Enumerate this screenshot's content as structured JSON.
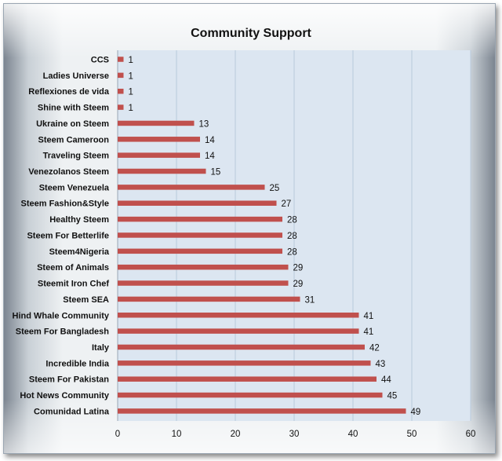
{
  "chart_data": {
    "type": "bar",
    "orientation": "horizontal",
    "title": "Community Support",
    "categories": [
      "CCS",
      "Ladies Universe",
      "Reflexiones de vida",
      "Shine with Steem",
      "Ukraine on Steem",
      "Steem Cameroon",
      "Traveling Steem",
      "Venezolanos Steem",
      "Steem Venezuela",
      "Steem Fashion&Style",
      "Healthy Steem",
      "Steem For Betterlife",
      "Steem4Nigeria",
      "Steem of Animals",
      "Steemit Iron Chef",
      "Steem SEA",
      "Hind Whale Community",
      "Steem For Bangladesh",
      "Italy",
      "Incredible India",
      "Steem For Pakistan",
      "Hot News Community",
      "Comunidad Latina"
    ],
    "values": [
      1,
      1,
      1,
      1,
      13,
      14,
      14,
      15,
      25,
      27,
      28,
      28,
      28,
      29,
      29,
      31,
      41,
      41,
      42,
      43,
      44,
      45,
      49
    ],
    "xlim": [
      0,
      60
    ],
    "xticks": [
      0,
      10,
      20,
      30,
      40,
      50,
      60
    ],
    "xlabel": "",
    "ylabel": "",
    "grid": true,
    "data_labels": true,
    "bar_color": "#c0504d",
    "plot_background": "#dce6f1",
    "gridline_color": "#b9c9dc"
  }
}
